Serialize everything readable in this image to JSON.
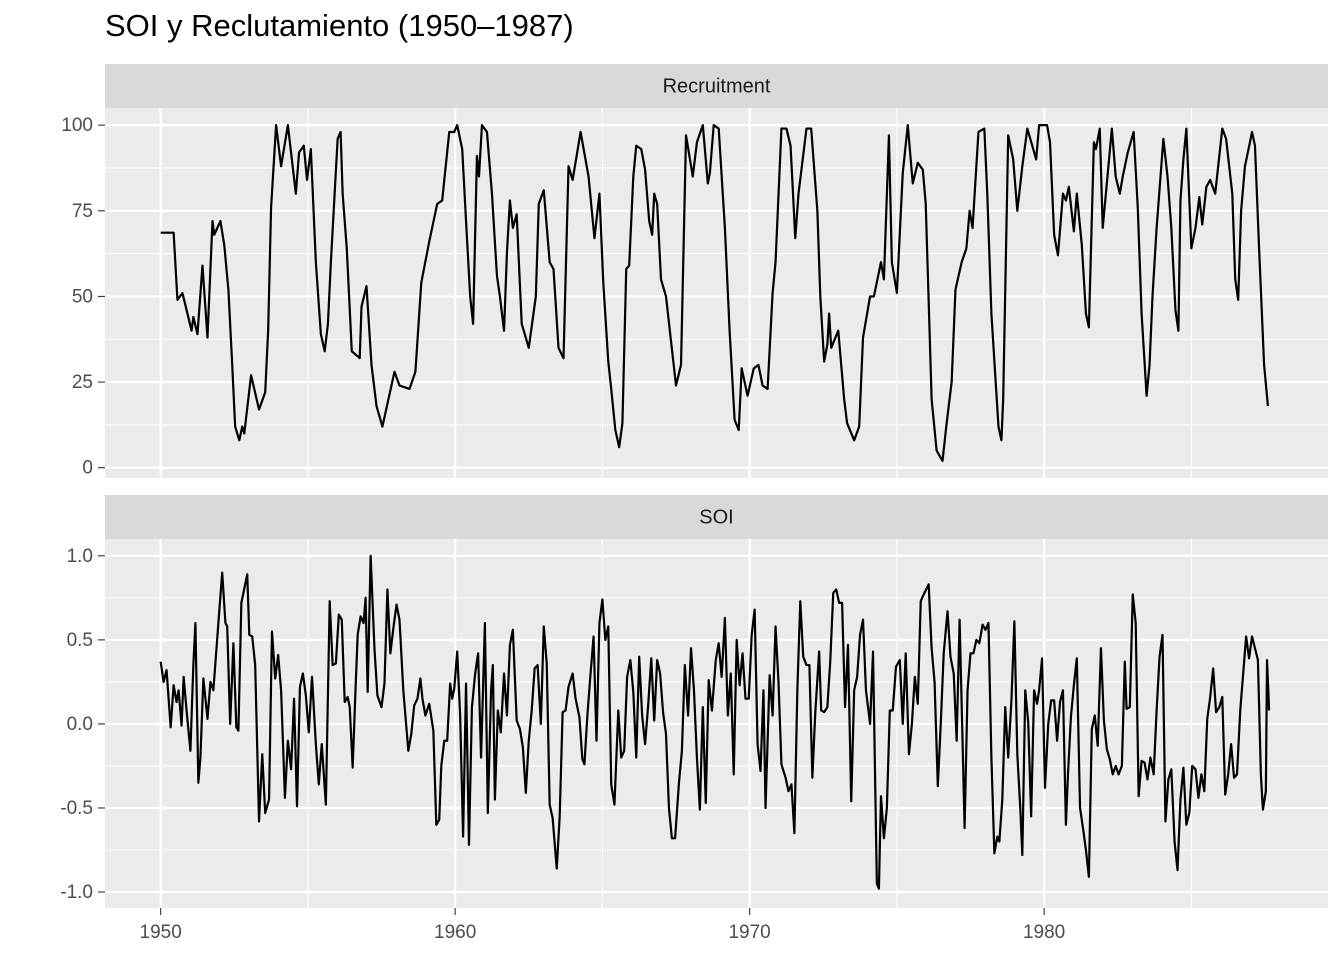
{
  "title": "SOI y Reclutamiento (1950–1987)",
  "chart_data": [
    {
      "type": "line",
      "title": "Recruitment",
      "color": "#000000",
      "grid": true,
      "xlim": [
        1948.11,
        1989.64
      ],
      "xticks": [
        1950,
        1960,
        1970,
        1980
      ],
      "ylim": [
        -3,
        105
      ],
      "yticks": [
        0,
        25,
        50,
        75,
        100
      ],
      "x": [
        1950.0,
        1950.44,
        1950.57,
        1950.74,
        1951.05,
        1951.11,
        1951.25,
        1951.42,
        1951.59,
        1951.76,
        1951.82,
        1952.03,
        1952.16,
        1952.3,
        1952.43,
        1952.53,
        1952.67,
        1952.77,
        1952.84,
        1953.07,
        1953.34,
        1953.55,
        1953.65,
        1953.75,
        1953.92,
        1954.09,
        1954.32,
        1954.59,
        1954.7,
        1954.86,
        1954.97,
        1955.1,
        1955.27,
        1955.44,
        1955.57,
        1955.68,
        1955.78,
        1956.01,
        1956.11,
        1956.18,
        1956.32,
        1956.49,
        1956.76,
        1956.82,
        1956.99,
        1957.16,
        1957.33,
        1957.53,
        1957.94,
        1958.11,
        1958.45,
        1958.65,
        1958.85,
        1959.12,
        1959.39,
        1959.56,
        1959.8,
        1959.97,
        1960.07,
        1960.24,
        1960.37,
        1960.51,
        1960.61,
        1960.74,
        1960.81,
        1960.91,
        1961.08,
        1961.25,
        1961.42,
        1961.52,
        1961.66,
        1961.76,
        1961.86,
        1961.96,
        1962.09,
        1962.26,
        1962.5,
        1962.74,
        1962.84,
        1963.01,
        1963.21,
        1963.34,
        1963.51,
        1963.68,
        1963.85,
        1963.99,
        1964.26,
        1964.53,
        1964.73,
        1964.9,
        1965.03,
        1965.2,
        1965.3,
        1965.44,
        1965.57,
        1965.68,
        1965.81,
        1965.91,
        1966.05,
        1966.15,
        1966.32,
        1966.45,
        1966.59,
        1966.69,
        1966.76,
        1966.86,
        1966.99,
        1967.16,
        1967.33,
        1967.5,
        1967.67,
        1967.84,
        1968.07,
        1968.21,
        1968.41,
        1968.58,
        1968.65,
        1968.78,
        1968.95,
        1969.16,
        1969.32,
        1969.49,
        1969.63,
        1969.73,
        1969.83,
        1969.93,
        1970.14,
        1970.3,
        1970.44,
        1970.61,
        1970.78,
        1970.88,
        1971.08,
        1971.25,
        1971.39,
        1971.55,
        1971.66,
        1971.93,
        1972.09,
        1972.3,
        1972.4,
        1972.53,
        1972.64,
        1972.7,
        1972.77,
        1973.01,
        1973.21,
        1973.31,
        1973.55,
        1973.72,
        1973.85,
        1974.09,
        1974.22,
        1974.46,
        1974.56,
        1974.73,
        1974.83,
        1975.0,
        1975.2,
        1975.37,
        1975.54,
        1975.71,
        1975.88,
        1975.98,
        1976.18,
        1976.35,
        1976.55,
        1976.69,
        1976.86,
        1976.99,
        1977.2,
        1977.36,
        1977.47,
        1977.57,
        1977.77,
        1977.97,
        1978.07,
        1978.21,
        1978.45,
        1978.55,
        1978.61,
        1978.78,
        1978.95,
        1979.09,
        1979.26,
        1979.43,
        1979.63,
        1979.73,
        1979.83,
        1980.1,
        1980.2,
        1980.34,
        1980.47,
        1980.64,
        1980.74,
        1980.84,
        1981.01,
        1981.11,
        1981.28,
        1981.42,
        1981.52,
        1981.69,
        1981.76,
        1981.89,
        1981.99,
        1982.13,
        1982.3,
        1982.43,
        1982.57,
        1982.67,
        1982.84,
        1983.04,
        1983.18,
        1983.31,
        1983.48,
        1983.58,
        1983.68,
        1983.82,
        1984.05,
        1984.19,
        1984.32,
        1984.46,
        1984.56,
        1984.63,
        1984.73,
        1984.83,
        1985.0,
        1985.14,
        1985.27,
        1985.37,
        1985.51,
        1985.64,
        1985.81,
        1986.05,
        1986.18,
        1986.39,
        1986.49,
        1986.59,
        1986.69,
        1986.82,
        1986.99,
        1987.06,
        1987.16,
        1987.3,
        1987.47,
        1987.6
      ],
      "values": [
        68.6,
        68.6,
        49,
        51,
        40,
        44,
        39,
        59,
        38,
        72,
        68,
        72,
        65,
        52,
        30,
        12,
        8,
        12,
        10,
        27,
        17,
        22,
        40,
        76,
        100,
        88,
        100,
        80,
        92,
        94,
        84,
        93,
        60,
        39,
        34,
        42,
        60,
        96,
        98,
        80,
        64,
        34,
        32,
        47,
        53,
        30,
        18,
        12,
        28,
        24,
        23,
        28,
        54,
        66,
        77,
        78,
        98,
        98,
        100,
        93,
        72,
        50,
        42,
        91,
        85,
        100,
        98,
        80,
        56,
        50,
        40,
        63,
        78,
        70,
        74,
        42,
        35,
        50,
        77,
        81,
        60,
        58,
        35,
        32,
        88,
        84,
        98,
        85,
        67,
        80,
        54,
        31,
        23,
        11,
        6,
        13,
        58,
        59,
        85,
        94,
        93,
        87,
        72,
        68,
        80,
        77,
        55,
        50,
        37,
        24,
        30,
        97,
        85,
        95,
        100,
        83,
        86,
        100,
        99,
        70,
        40,
        14,
        11,
        29,
        25,
        21,
        29,
        30,
        24,
        23,
        51,
        60,
        99,
        99,
        94,
        67,
        80,
        99,
        99,
        75,
        50,
        31,
        36,
        45,
        35,
        40,
        20,
        13,
        8,
        12,
        38,
        50,
        50,
        60,
        55,
        97,
        60,
        51,
        86,
        100,
        83,
        89,
        87,
        77,
        20,
        5,
        2,
        13,
        25,
        52,
        60,
        64,
        75,
        70,
        98,
        99,
        80,
        45,
        12,
        8,
        20,
        97,
        90,
        75,
        88,
        99,
        93,
        90,
        100,
        100,
        95,
        68,
        62,
        80,
        78,
        82,
        69,
        80,
        65,
        45,
        41,
        95,
        93,
        99,
        70,
        83,
        99,
        85,
        80,
        85,
        92,
        98,
        76,
        45,
        21,
        30,
        50,
        70,
        96,
        85,
        70,
        46,
        40,
        78,
        90,
        99,
        64,
        70,
        79,
        71,
        82,
        84,
        80,
        99,
        96,
        80,
        55,
        49,
        75,
        88,
        95,
        98,
        94,
        64,
        30,
        18
      ]
    },
    {
      "type": "line",
      "title": "SOI",
      "color": "#000000",
      "grid": true,
      "xlim": [
        1948.11,
        1989.64
      ],
      "xticks": [
        1950,
        1960,
        1970,
        1980
      ],
      "ylim": [
        -1.095,
        1.1
      ],
      "yticks": [
        {
          "value": -1,
          "label": "-1.0"
        },
        -0.5,
        {
          "value": 0,
          "label": "0.0"
        },
        0.5,
        {
          "value": 1,
          "label": "1.0"
        }
      ],
      "x": [
        1950.0,
        1950.1,
        1950.2,
        1950.34,
        1950.44,
        1950.54,
        1950.61,
        1950.71,
        1950.78,
        1950.88,
        1951.01,
        1951.11,
        1951.18,
        1951.28,
        1951.35,
        1951.45,
        1951.59,
        1951.69,
        1951.79,
        1951.96,
        1952.09,
        1952.2,
        1952.26,
        1952.36,
        1952.47,
        1952.57,
        1952.64,
        1952.74,
        1952.94,
        1953.01,
        1953.11,
        1953.21,
        1953.34,
        1953.45,
        1953.55,
        1953.68,
        1953.78,
        1953.89,
        1953.99,
        1954.09,
        1954.22,
        1954.32,
        1954.43,
        1954.53,
        1954.63,
        1954.73,
        1954.83,
        1954.93,
        1955.03,
        1955.14,
        1955.27,
        1955.37,
        1955.47,
        1955.61,
        1955.74,
        1955.84,
        1955.95,
        1956.05,
        1956.15,
        1956.25,
        1956.35,
        1956.42,
        1956.52,
        1956.62,
        1956.69,
        1956.79,
        1956.89,
        1956.96,
        1957.03,
        1957.13,
        1957.26,
        1957.36,
        1957.5,
        1957.6,
        1957.7,
        1957.8,
        1957.91,
        1958.01,
        1958.11,
        1958.24,
        1958.41,
        1958.51,
        1958.61,
        1958.72,
        1958.82,
        1958.89,
        1958.99,
        1959.12,
        1959.26,
        1959.36,
        1959.46,
        1959.53,
        1959.63,
        1959.73,
        1959.83,
        1959.9,
        1959.97,
        1960.07,
        1960.17,
        1960.27,
        1960.37,
        1960.47,
        1960.57,
        1960.68,
        1960.78,
        1960.88,
        1961.01,
        1961.11,
        1961.22,
        1961.28,
        1961.35,
        1961.45,
        1961.55,
        1961.66,
        1961.76,
        1961.86,
        1961.96,
        1962.09,
        1962.2,
        1962.3,
        1962.4,
        1962.5,
        1962.6,
        1962.7,
        1962.8,
        1962.91,
        1963.01,
        1963.11,
        1963.21,
        1963.31,
        1963.45,
        1963.55,
        1963.65,
        1963.75,
        1963.85,
        1963.99,
        1964.09,
        1964.22,
        1964.32,
        1964.39,
        1964.49,
        1964.59,
        1964.7,
        1964.8,
        1964.9,
        1965.0,
        1965.1,
        1965.2,
        1965.3,
        1965.41,
        1965.54,
        1965.64,
        1965.74,
        1965.84,
        1965.95,
        1966.05,
        1966.15,
        1966.25,
        1966.35,
        1966.45,
        1966.55,
        1966.66,
        1966.76,
        1966.86,
        1966.96,
        1967.06,
        1967.16,
        1967.26,
        1967.36,
        1967.47,
        1967.6,
        1967.7,
        1967.8,
        1967.91,
        1968.01,
        1968.11,
        1968.21,
        1968.31,
        1968.41,
        1968.51,
        1968.61,
        1968.72,
        1968.85,
        1968.95,
        1969.05,
        1969.16,
        1969.26,
        1969.36,
        1969.46,
        1969.56,
        1969.66,
        1969.76,
        1969.86,
        1969.97,
        1970.07,
        1970.17,
        1970.27,
        1970.37,
        1970.47,
        1970.54,
        1970.68,
        1970.78,
        1970.88,
        1970.98,
        1971.08,
        1971.22,
        1971.32,
        1971.42,
        1971.52,
        1971.62,
        1971.72,
        1971.82,
        1971.93,
        1972.03,
        1972.13,
        1972.23,
        1972.36,
        1972.43,
        1972.53,
        1972.64,
        1972.74,
        1972.84,
        1972.94,
        1973.04,
        1973.14,
        1973.24,
        1973.34,
        1973.45,
        1973.55,
        1973.65,
        1973.75,
        1973.85,
        1973.95,
        1974.09,
        1974.19,
        1974.32,
        1974.39,
        1974.46,
        1974.56,
        1974.66,
        1974.76,
        1974.86,
        1974.97,
        1975.1,
        1975.2,
        1975.3,
        1975.41,
        1975.51,
        1975.61,
        1975.71,
        1975.81,
        1975.91,
        1976.08,
        1976.18,
        1976.28,
        1976.39,
        1976.49,
        1976.59,
        1976.72,
        1976.82,
        1976.93,
        1977.03,
        1977.13,
        1977.23,
        1977.3,
        1977.4,
        1977.5,
        1977.6,
        1977.7,
        1977.8,
        1977.91,
        1978.01,
        1978.11,
        1978.21,
        1978.31,
        1978.41,
        1978.48,
        1978.58,
        1978.68,
        1978.78,
        1978.89,
        1978.99,
        1979.09,
        1979.19,
        1979.26,
        1979.36,
        1979.46,
        1979.56,
        1979.66,
        1979.76,
        1979.83,
        1979.93,
        1980.03,
        1980.14,
        1980.24,
        1980.34,
        1980.44,
        1980.54,
        1980.64,
        1980.74,
        1980.81,
        1980.91,
        1981.01,
        1981.11,
        1981.22,
        1981.32,
        1981.42,
        1981.52,
        1981.62,
        1981.72,
        1981.82,
        1981.93,
        1982.03,
        1982.13,
        1982.23,
        1982.33,
        1982.43,
        1982.53,
        1982.64,
        1982.74,
        1982.8,
        1982.91,
        1983.01,
        1983.11,
        1983.21,
        1983.31,
        1983.41,
        1983.51,
        1983.61,
        1983.72,
        1983.82,
        1983.92,
        1984.02,
        1984.12,
        1984.22,
        1984.32,
        1984.43,
        1984.53,
        1984.63,
        1984.73,
        1984.83,
        1984.93,
        1985.03,
        1985.14,
        1985.24,
        1985.34,
        1985.44,
        1985.54,
        1985.64,
        1985.74,
        1985.84,
        1985.95,
        1986.05,
        1986.15,
        1986.25,
        1986.35,
        1986.45,
        1986.55,
        1986.66,
        1986.76,
        1986.86,
        1986.96,
        1987.06,
        1987.16,
        1987.26,
        1987.36,
        1987.43,
        1987.53,
        1987.57,
        1987.64
      ],
      "values": [
        0.37,
        0.25,
        0.32,
        -0.02,
        0.23,
        0.13,
        0.2,
        -0.01,
        0.28,
        0.08,
        -0.16,
        0.35,
        0.6,
        -0.35,
        -0.2,
        0.27,
        0.03,
        0.25,
        0.2,
        0.6,
        0.9,
        0.6,
        0.58,
        0.0,
        0.48,
        -0.02,
        -0.04,
        0.72,
        0.89,
        0.53,
        0.52,
        0.35,
        -0.58,
        -0.18,
        -0.53,
        -0.45,
        0.55,
        0.27,
        0.41,
        0.2,
        -0.44,
        -0.1,
        -0.27,
        0.15,
        -0.49,
        0.22,
        0.3,
        0.17,
        -0.05,
        0.28,
        -0.12,
        -0.36,
        -0.12,
        -0.48,
        0.73,
        0.35,
        0.36,
        0.65,
        0.62,
        0.13,
        0.16,
        0.1,
        -0.26,
        0.22,
        0.53,
        0.64,
        0.6,
        0.75,
        0.19,
        1.0,
        0.45,
        0.17,
        0.1,
        0.24,
        0.8,
        0.42,
        0.58,
        0.71,
        0.62,
        0.2,
        -0.16,
        -0.06,
        0.11,
        0.15,
        0.27,
        0.15,
        0.05,
        0.12,
        -0.04,
        -0.6,
        -0.57,
        -0.25,
        -0.1,
        -0.1,
        0.24,
        0.15,
        0.21,
        0.43,
        0.05,
        -0.67,
        0.24,
        -0.72,
        0.1,
        0.3,
        0.42,
        -0.2,
        0.6,
        -0.53,
        0.2,
        0.35,
        -0.45,
        0.08,
        -0.05,
        0.3,
        0.05,
        0.47,
        0.56,
        0.02,
        -0.03,
        -0.14,
        -0.41,
        -0.1,
        0.08,
        0.33,
        0.35,
        0.0,
        0.58,
        0.36,
        -0.48,
        -0.56,
        -0.86,
        -0.55,
        0.07,
        0.08,
        0.22,
        0.3,
        0.15,
        0.04,
        -0.21,
        -0.24,
        0.05,
        0.28,
        0.52,
        -0.1,
        0.6,
        0.74,
        0.5,
        0.58,
        -0.36,
        -0.48,
        0.08,
        -0.2,
        -0.16,
        0.28,
        0.38,
        0.19,
        -0.2,
        0.4,
        0.05,
        -0.12,
        0.1,
        0.39,
        0.02,
        0.38,
        0.3,
        0.07,
        -0.06,
        -0.5,
        -0.68,
        -0.68,
        -0.35,
        -0.16,
        0.35,
        0.05,
        0.45,
        0.2,
        -0.2,
        -0.51,
        0.1,
        -0.47,
        0.26,
        0.08,
        0.38,
        0.48,
        0.28,
        0.63,
        0.05,
        0.3,
        -0.3,
        0.5,
        0.23,
        0.42,
        0.15,
        0.15,
        0.53,
        0.68,
        -0.12,
        -0.28,
        0.2,
        -0.5,
        0.29,
        0.05,
        0.58,
        0.25,
        -0.24,
        -0.32,
        -0.4,
        -0.36,
        -0.65,
        0.2,
        0.73,
        0.4,
        0.35,
        0.35,
        -0.32,
        0.07,
        0.43,
        0.08,
        0.07,
        0.1,
        0.38,
        0.78,
        0.8,
        0.72,
        0.72,
        0.1,
        0.47,
        -0.46,
        0.2,
        0.28,
        0.53,
        0.62,
        0.2,
        0.0,
        0.43,
        -0.95,
        -0.98,
        -0.43,
        -0.68,
        -0.5,
        0.08,
        0.08,
        0.34,
        0.38,
        0.0,
        0.42,
        -0.18,
        0.0,
        0.28,
        0.12,
        0.73,
        0.77,
        0.83,
        0.45,
        0.25,
        -0.37,
        0.0,
        0.42,
        0.67,
        0.4,
        0.3,
        -0.1,
        0.62,
        -0.1,
        -0.62,
        0.2,
        0.42,
        0.42,
        0.5,
        0.48,
        0.59,
        0.56,
        0.6,
        -0.2,
        -0.77,
        -0.67,
        -0.7,
        -0.45,
        0.1,
        -0.2,
        0.14,
        0.61,
        -0.18,
        -0.5,
        -0.78,
        0.2,
        0.01,
        -0.55,
        0.2,
        0.12,
        0.2,
        0.39,
        -0.38,
        0.0,
        0.14,
        0.14,
        -0.1,
        0.13,
        0.2,
        -0.6,
        -0.3,
        0.04,
        0.23,
        0.39,
        -0.5,
        -0.62,
        -0.75,
        -0.91,
        -0.03,
        0.05,
        -0.13,
        0.45,
        0.02,
        -0.15,
        -0.21,
        -0.3,
        -0.25,
        -0.3,
        -0.25,
        0.37,
        0.09,
        0.1,
        0.77,
        0.6,
        -0.43,
        -0.22,
        -0.23,
        -0.33,
        -0.2,
        -0.3,
        0.08,
        0.4,
        0.53,
        -0.58,
        -0.33,
        -0.27,
        -0.7,
        -0.87,
        -0.45,
        -0.26,
        -0.6,
        -0.53,
        -0.25,
        -0.27,
        -0.44,
        -0.3,
        -0.4,
        0.03,
        0.16,
        0.33,
        0.07,
        0.1,
        0.16,
        -0.42,
        -0.3,
        -0.12,
        -0.32,
        -0.3,
        0.08,
        0.3,
        0.52,
        0.39,
        0.52,
        0.45,
        0.38,
        -0.3,
        -0.51,
        -0.4,
        0.38,
        0.08
      ]
    }
  ]
}
